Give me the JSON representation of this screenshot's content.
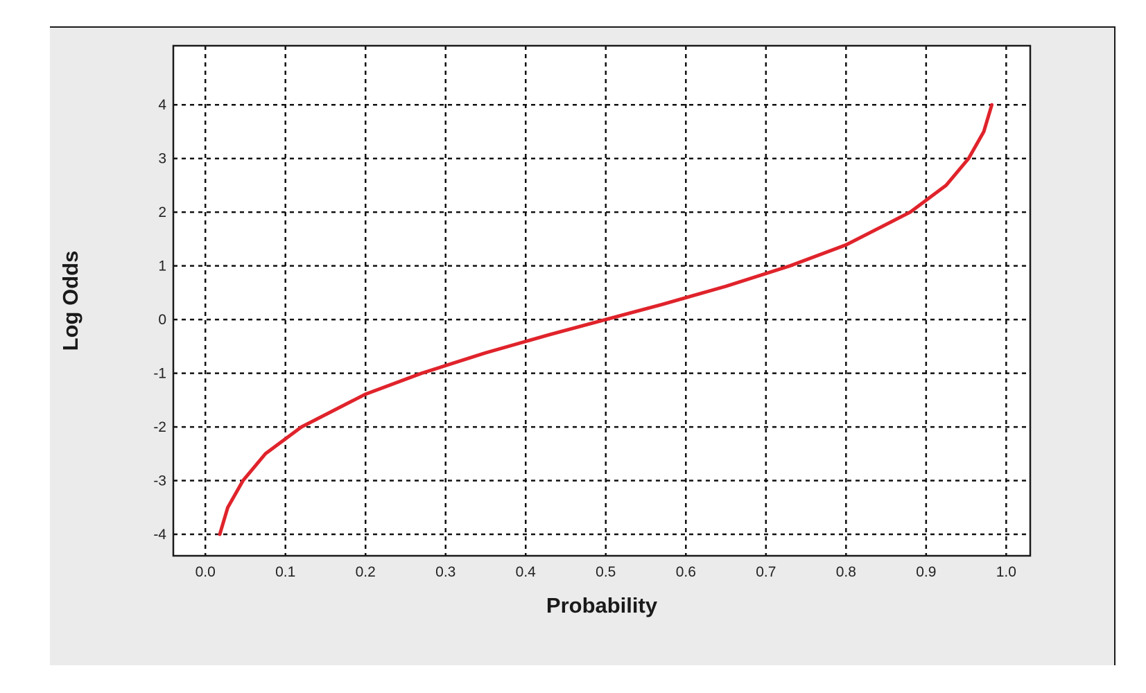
{
  "chart_data": {
    "type": "line",
    "title": "",
    "xlabel": "Probability",
    "ylabel": "Log Odds",
    "xlim": [
      -0.04,
      1.03
    ],
    "ylim": [
      -4.4,
      5.1
    ],
    "xticks": [
      "0.0",
      "0.1",
      "0.2",
      "0.3",
      "0.4",
      "0.5",
      "0.6",
      "0.7",
      "0.8",
      "0.9",
      "1.0"
    ],
    "yticks": [
      "-4",
      "-3",
      "-2",
      "-1",
      "0",
      "1",
      "2",
      "3",
      "4"
    ],
    "grid": true,
    "legend": "none",
    "series": [
      {
        "color": "#e0232b",
        "x": [
          0.018,
          0.028,
          0.047,
          0.075,
          0.12,
          0.2,
          0.27,
          0.35,
          0.43,
          0.5,
          0.57,
          0.65,
          0.73,
          0.8,
          0.88,
          0.925,
          0.953,
          0.972,
          0.982
        ],
        "y": [
          -4.0,
          -3.5,
          -3.0,
          -2.5,
          -2.0,
          -1.39,
          -1.0,
          -0.62,
          -0.28,
          0.0,
          0.28,
          0.62,
          1.0,
          1.39,
          2.0,
          2.5,
          3.0,
          3.5,
          4.0
        ]
      }
    ]
  }
}
